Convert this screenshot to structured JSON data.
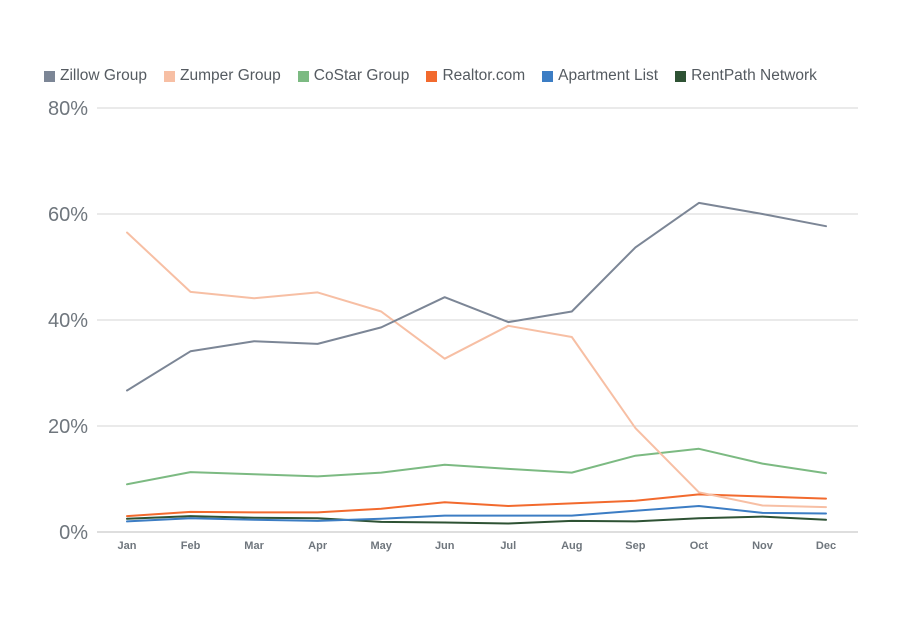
{
  "chart_data": {
    "type": "line",
    "title": "",
    "xlabel": "",
    "ylabel": "",
    "ylim": [
      0,
      80
    ],
    "y_ticks": [
      {
        "value": 0,
        "label": "0%"
      },
      {
        "value": 20,
        "label": "20%"
      },
      {
        "value": 40,
        "label": "40%"
      },
      {
        "value": 60,
        "label": "60%"
      },
      {
        "value": 80,
        "label": "80%"
      }
    ],
    "grid": true,
    "legend_position": "top",
    "categories": [
      "Jan",
      "Feb",
      "Mar",
      "Apr",
      "May",
      "Jun",
      "Jul",
      "Aug",
      "Sep",
      "Oct",
      "Nov",
      "Dec"
    ],
    "series": [
      {
        "name": "Zillow Group",
        "color": "#7c8696",
        "values": [
          26.7,
          34.1,
          36.0,
          35.5,
          38.6,
          44.3,
          39.6,
          41.6,
          53.7,
          62.1,
          60.0,
          57.7
        ]
      },
      {
        "name": "Zumper Group",
        "color": "#f7bfa4",
        "values": [
          56.5,
          45.3,
          44.1,
          45.2,
          41.6,
          32.7,
          38.9,
          36.8,
          19.6,
          7.5,
          5.0,
          4.7
        ]
      },
      {
        "name": "CoStar Group",
        "color": "#7cba82",
        "values": [
          9.0,
          11.3,
          10.9,
          10.5,
          11.2,
          12.7,
          11.9,
          11.2,
          14.4,
          15.7,
          12.9,
          11.1
        ]
      },
      {
        "name": "Realtor.com",
        "color": "#f26a2e",
        "values": [
          3.0,
          3.8,
          3.7,
          3.7,
          4.4,
          5.6,
          4.9,
          5.4,
          5.9,
          7.1,
          6.7,
          6.3
        ]
      },
      {
        "name": "Apartment List",
        "color": "#3c7dc4",
        "values": [
          2.0,
          2.6,
          2.3,
          2.1,
          2.5,
          3.1,
          3.1,
          3.1,
          4.0,
          4.9,
          3.6,
          3.5
        ]
      },
      {
        "name": "RentPath Network",
        "color": "#2e5234",
        "values": [
          2.5,
          3.0,
          2.7,
          2.6,
          1.9,
          1.8,
          1.6,
          2.1,
          2.0,
          2.6,
          2.9,
          2.3
        ]
      }
    ]
  }
}
